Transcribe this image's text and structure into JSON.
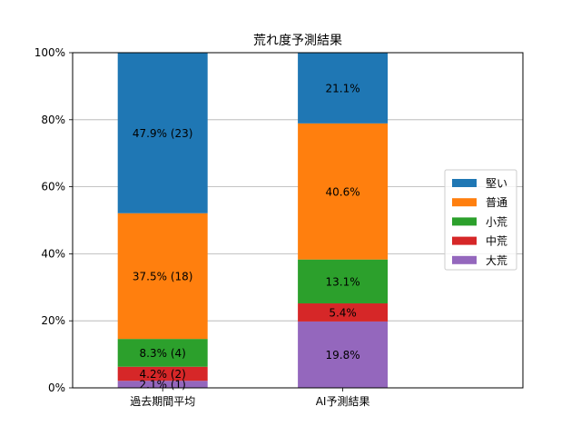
{
  "chart_data": {
    "type": "bar",
    "stacked": true,
    "title": "荒れ度予測結果",
    "xlabel": "",
    "ylabel": "",
    "categories": [
      "過去期間平均",
      "AI予測結果"
    ],
    "ylim": [
      0,
      100
    ],
    "yticks": [
      "0%",
      "20%",
      "40%",
      "60%",
      "80%",
      "100%"
    ],
    "grid": "y",
    "legend_position": "right",
    "series": [
      {
        "name": "大荒",
        "color": "#9467bd",
        "values": [
          2.1,
          19.8
        ],
        "labels": [
          "2.1% (1)",
          "19.8%"
        ]
      },
      {
        "name": "中荒",
        "color": "#d62728",
        "values": [
          4.2,
          5.4
        ],
        "labels": [
          "4.2% (2)",
          "5.4%"
        ]
      },
      {
        "name": "小荒",
        "color": "#2ca02c",
        "values": [
          8.3,
          13.1
        ],
        "labels": [
          "8.3% (4)",
          "13.1%"
        ]
      },
      {
        "name": "普通",
        "color": "#ff7f0e",
        "values": [
          37.5,
          40.6
        ],
        "labels": [
          "37.5% (18)",
          "40.6%"
        ]
      },
      {
        "name": "堅い",
        "color": "#1f77b4",
        "values": [
          47.9,
          21.1
        ],
        "labels": [
          "47.9% (23)",
          "21.1%"
        ]
      }
    ]
  }
}
